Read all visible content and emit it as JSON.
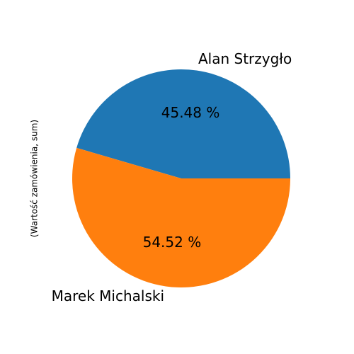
{
  "chart_data": {
    "type": "pie",
    "ylabel": "(Wartość zamówienia, sum)",
    "slices": [
      {
        "label": "Alan Strzygło",
        "value": 45.48,
        "pct_label": "45.48 %",
        "color": "#1f77b4"
      },
      {
        "label": "Marek Michalski",
        "value": 54.52,
        "pct_label": "54.52 %",
        "color": "#ff7f0e"
      }
    ],
    "start_angle_deg": 0,
    "direction": "counterclockwise"
  }
}
